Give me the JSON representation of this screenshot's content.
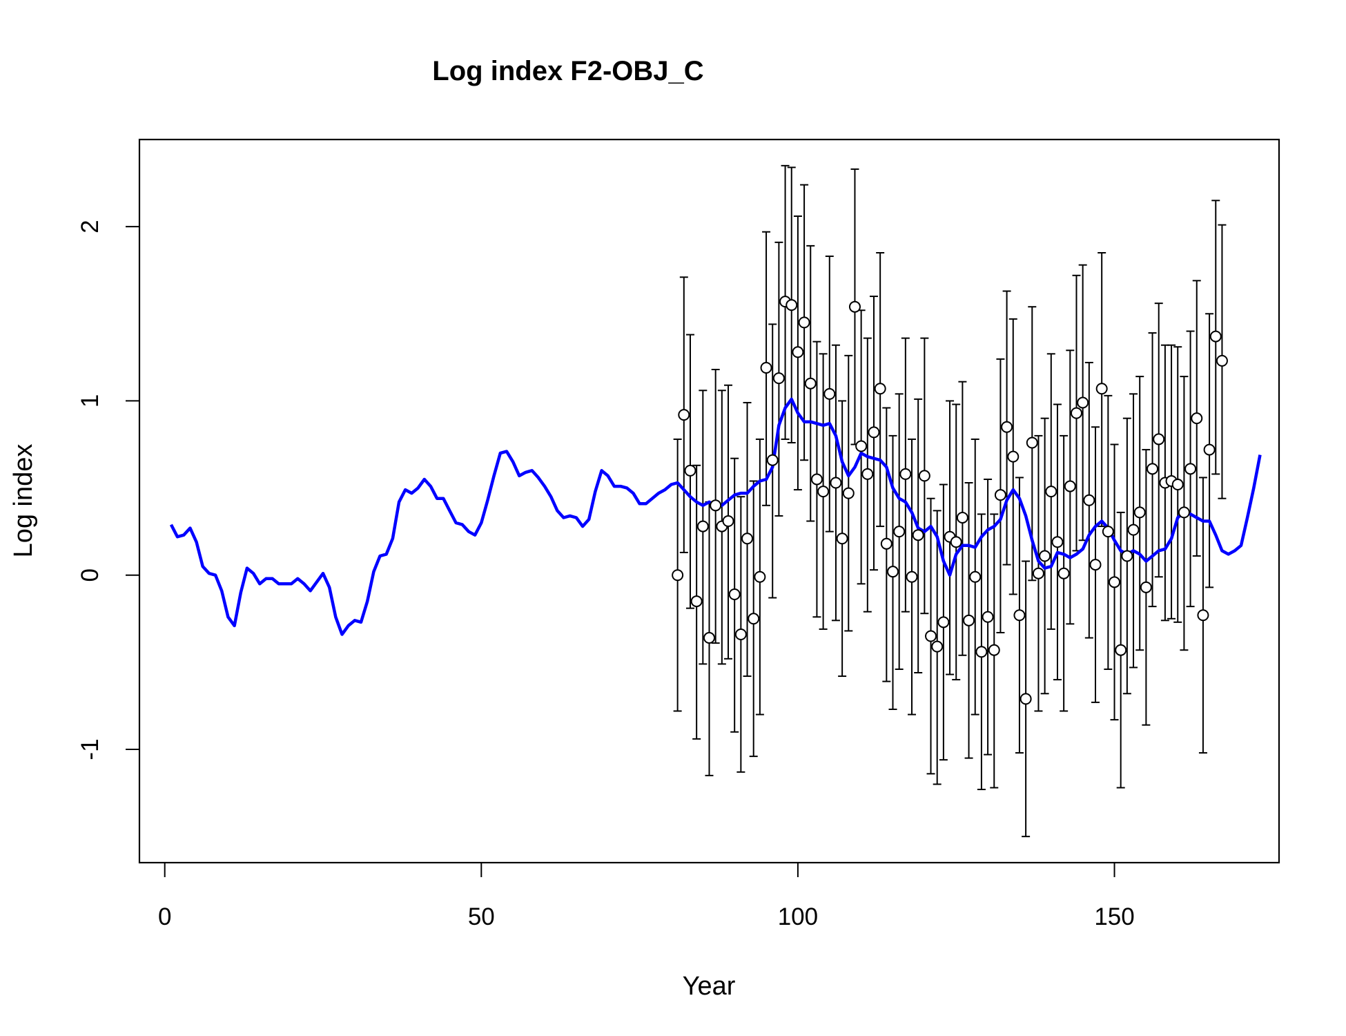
{
  "chart_data": {
    "type": "line",
    "title": "Log index F2-OBJ_C",
    "xlabel": "Year",
    "ylabel": "Log index",
    "xlim": [
      -4,
      176
    ],
    "ylim": [
      -1.65,
      2.5
    ],
    "xticks": [
      0,
      50,
      100,
      150
    ],
    "yticks": [
      -1,
      0,
      1,
      2
    ],
    "xtick_labels": [
      "0",
      "50",
      "100",
      "150"
    ],
    "ytick_labels": [
      "-1",
      "0",
      "1",
      "2"
    ],
    "grid": false,
    "colors": {
      "line": "#0000ff",
      "points": "#000000",
      "errorbars": "#000000",
      "background": "#ffffff"
    },
    "series": [
      {
        "type": "line",
        "x_start": 1,
        "values": [
          0.29,
          0.22,
          0.23,
          0.27,
          0.19,
          0.05,
          0.01,
          0.0,
          -0.09,
          -0.24,
          -0.29,
          -0.1,
          0.04,
          0.01,
          -0.05,
          -0.02,
          -0.02,
          -0.05,
          -0.05,
          -0.05,
          -0.02,
          -0.05,
          -0.09,
          -0.04,
          0.01,
          -0.07,
          -0.24,
          -0.34,
          -0.29,
          -0.26,
          -0.27,
          -0.15,
          0.02,
          0.11,
          0.12,
          0.21,
          0.42,
          0.49,
          0.47,
          0.5,
          0.55,
          0.51,
          0.44,
          0.44,
          0.37,
          0.3,
          0.29,
          0.25,
          0.23,
          0.3,
          0.43,
          0.57,
          0.7,
          0.71,
          0.65,
          0.57,
          0.59,
          0.6,
          0.56,
          0.51,
          0.45,
          0.37,
          0.33,
          0.34,
          0.33,
          0.28,
          0.32,
          0.48,
          0.6,
          0.57,
          0.51,
          0.51,
          0.5,
          0.47,
          0.41,
          0.41,
          0.44,
          0.47,
          0.49,
          0.52,
          0.53,
          0.49,
          0.45,
          0.42,
          0.4,
          0.42,
          0.4,
          0.4,
          0.43,
          0.46,
          0.47,
          0.47,
          0.51,
          0.54,
          0.55,
          0.62,
          0.86,
          0.96,
          1.01,
          0.93,
          0.88,
          0.88,
          0.87,
          0.86,
          0.87,
          0.8,
          0.65,
          0.57,
          0.62,
          0.7,
          0.68,
          0.67,
          0.66,
          0.62,
          0.5,
          0.44,
          0.42,
          0.36,
          0.27,
          0.25,
          0.28,
          0.22,
          0.08,
          0.0,
          0.12,
          0.17,
          0.17,
          0.16,
          0.22,
          0.26,
          0.28,
          0.32,
          0.43,
          0.49,
          0.44,
          0.34,
          0.2,
          0.08,
          0.04,
          0.05,
          0.13,
          0.12,
          0.1,
          0.12,
          0.15,
          0.23,
          0.28,
          0.31,
          0.27,
          0.2,
          0.14,
          0.12,
          0.14,
          0.12,
          0.08,
          0.11,
          0.14,
          0.15,
          0.21,
          0.33,
          0.36,
          0.35,
          0.33,
          0.31,
          0.31,
          0.23,
          0.14,
          0.12,
          0.14,
          0.17,
          0.33,
          0.5,
          0.69
        ]
      },
      {
        "type": "points_with_errorbars",
        "x_start": 81,
        "values": [
          0.0,
          0.92,
          0.6,
          -0.15,
          0.28,
          -0.36,
          0.4,
          0.28,
          0.31,
          -0.11,
          -0.34,
          0.21,
          -0.25,
          -0.01,
          1.19,
          0.66,
          1.13,
          1.57,
          1.55,
          1.28,
          1.45,
          1.1,
          0.55,
          0.48,
          1.04,
          0.53,
          0.21,
          0.47,
          1.54,
          0.74,
          0.58,
          0.82,
          1.07,
          0.18,
          0.02,
          0.25,
          0.58,
          -0.01,
          0.23,
          0.57,
          -0.35,
          -0.41,
          -0.27,
          0.22,
          0.19,
          0.33,
          -0.26,
          -0.01,
          -0.44,
          -0.24,
          -0.43,
          0.46,
          0.85,
          0.68,
          -0.23,
          -0.71,
          0.76,
          0.01,
          0.11,
          0.48,
          0.19,
          0.01,
          0.51,
          0.93,
          0.99,
          0.43,
          0.06,
          1.07,
          0.25,
          -0.04,
          -0.43,
          0.11,
          0.26,
          0.36,
          -0.07,
          0.61,
          0.78,
          0.53,
          0.54,
          0.52,
          0.36,
          0.61,
          0.9,
          -0.23,
          0.72,
          1.37,
          1.23
        ],
        "lower": [
          -0.78,
          0.13,
          -0.19,
          -0.94,
          -0.51,
          -1.15,
          -0.39,
          -0.51,
          -0.48,
          -0.9,
          -1.13,
          -0.58,
          -1.04,
          -0.8,
          0.4,
          -0.13,
          0.34,
          0.78,
          0.76,
          0.49,
          0.66,
          0.31,
          -0.24,
          -0.31,
          0.25,
          -0.26,
          -0.58,
          -0.32,
          0.75,
          -0.05,
          -0.21,
          0.03,
          0.28,
          -0.61,
          -0.77,
          -0.54,
          -0.21,
          -0.8,
          -0.56,
          -0.22,
          -1.14,
          -1.2,
          -1.06,
          -0.57,
          -0.6,
          -0.46,
          -1.05,
          -0.8,
          -1.23,
          -1.03,
          -1.22,
          -0.33,
          0.06,
          -0.11,
          -1.02,
          -1.5,
          -0.03,
          -0.78,
          -0.68,
          -0.31,
          -0.6,
          -0.78,
          -0.28,
          0.14,
          0.2,
          -0.36,
          -0.73,
          0.28,
          -0.54,
          -0.83,
          -1.22,
          -0.68,
          -0.53,
          -0.43,
          -0.86,
          -0.18,
          -0.01,
          -0.26,
          -0.25,
          -0.27,
          -0.43,
          -0.18,
          0.11,
          -1.02,
          -0.07,
          0.58,
          0.44
        ],
        "upper": [
          0.78,
          1.71,
          1.38,
          0.63,
          1.06,
          0.42,
          1.18,
          1.06,
          1.09,
          0.67,
          0.45,
          0.99,
          0.54,
          0.78,
          1.97,
          1.44,
          1.91,
          2.35,
          2.34,
          2.06,
          2.24,
          1.89,
          1.34,
          1.27,
          1.83,
          1.32,
          1.0,
          1.26,
          2.33,
          1.52,
          1.36,
          1.6,
          1.85,
          0.96,
          0.8,
          1.04,
          1.36,
          0.78,
          1.01,
          1.36,
          0.44,
          0.37,
          0.52,
          1.0,
          0.98,
          1.11,
          0.53,
          0.78,
          0.35,
          0.55,
          0.35,
          1.24,
          1.63,
          1.47,
          0.56,
          0.08,
          1.54,
          0.8,
          0.9,
          1.27,
          0.98,
          0.8,
          1.29,
          1.72,
          1.78,
          1.22,
          0.85,
          1.85,
          1.03,
          0.75,
          0.36,
          0.9,
          1.04,
          1.14,
          0.72,
          1.39,
          1.56,
          1.32,
          1.32,
          1.31,
          1.14,
          1.4,
          1.69,
          0.56,
          1.5,
          2.15,
          2.01
        ]
      }
    ]
  }
}
